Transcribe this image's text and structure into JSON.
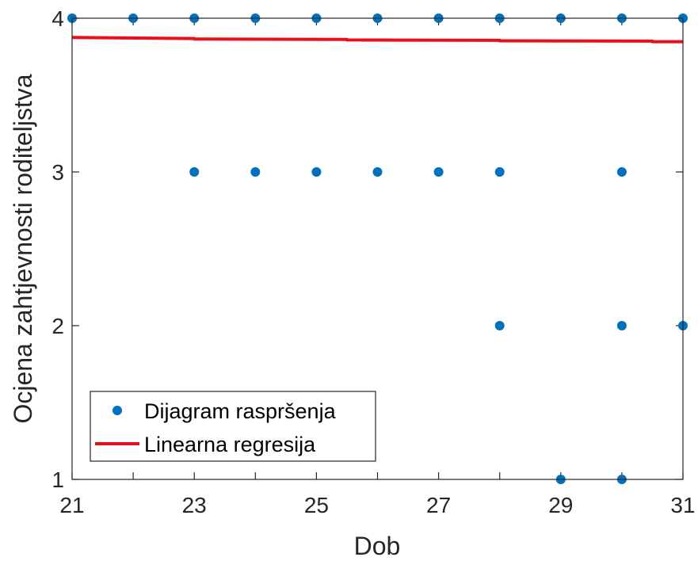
{
  "chart_data": {
    "type": "scatter",
    "xlabel": "Dob",
    "ylabel": "Ocjena zahtjevnosti roditeljstva",
    "xlim": [
      21,
      31
    ],
    "ylim": [
      1,
      4
    ],
    "xticks": [
      21,
      23,
      25,
      27,
      29,
      31
    ],
    "yticks": [
      1,
      2,
      3,
      4
    ],
    "grid": false,
    "legend": {
      "placement": "bottom-left",
      "entries": [
        "Dijagram raspršenja",
        "Linearna regresija"
      ]
    },
    "series": [
      {
        "name": "Dijagram raspršenja",
        "kind": "scatter",
        "color": "#0072BD",
        "points": [
          [
            21,
            4
          ],
          [
            22,
            4
          ],
          [
            23,
            4
          ],
          [
            24,
            4
          ],
          [
            25,
            4
          ],
          [
            26,
            4
          ],
          [
            27,
            4
          ],
          [
            28,
            4
          ],
          [
            29,
            4
          ],
          [
            30,
            4
          ],
          [
            31,
            4
          ],
          [
            23,
            3
          ],
          [
            24,
            3
          ],
          [
            25,
            3
          ],
          [
            26,
            3
          ],
          [
            27,
            3
          ],
          [
            28,
            3
          ],
          [
            30,
            3
          ],
          [
            28,
            2
          ],
          [
            30,
            2
          ],
          [
            31,
            2
          ],
          [
            29,
            1
          ],
          [
            30,
            1
          ]
        ]
      },
      {
        "name": "Linearna regresija",
        "kind": "line",
        "color": "#E8101A",
        "points": [
          [
            21,
            3.875
          ],
          [
            23,
            3.868
          ],
          [
            23,
            3.865
          ],
          [
            25.5,
            3.862
          ],
          [
            25.5,
            3.859
          ],
          [
            28,
            3.856
          ],
          [
            28,
            3.853
          ],
          [
            30.5,
            3.851
          ],
          [
            30.5,
            3.847
          ],
          [
            31,
            3.847
          ]
        ]
      }
    ]
  }
}
